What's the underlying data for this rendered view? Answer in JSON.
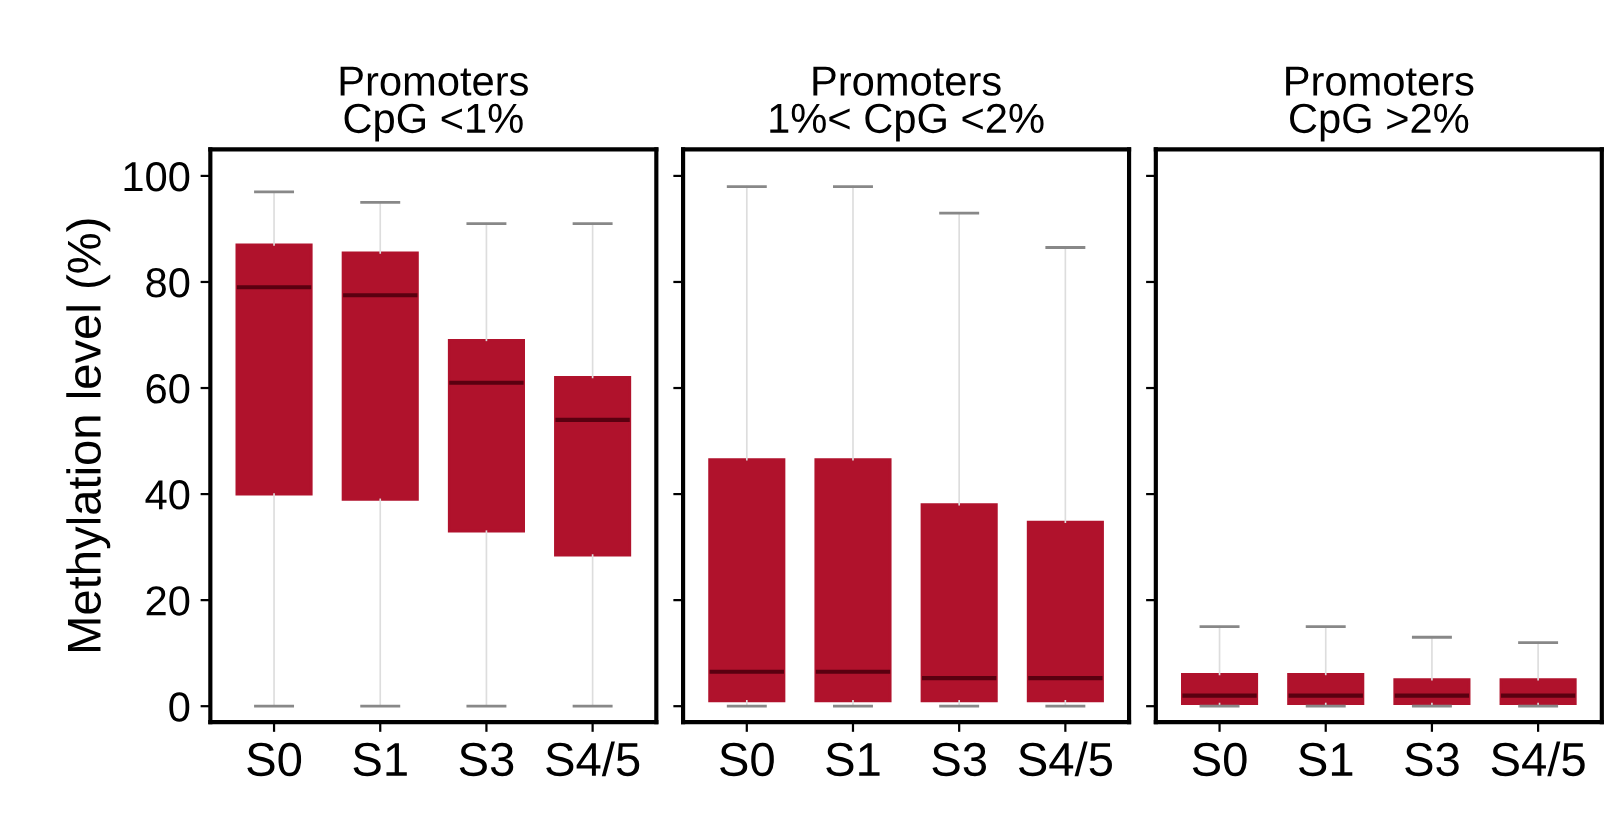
{
  "chart_data": [
    {
      "type": "box",
      "title": "Promoters\nCpG <1%",
      "ylabel": "Methylation level (%)",
      "categories": [
        "S0",
        "S1",
        "S3",
        "S4/5"
      ],
      "ylim": [
        -3,
        105
      ],
      "yticks": [
        0,
        20,
        40,
        60,
        80,
        100
      ],
      "color": "#b0122c",
      "boxes": [
        {
          "low": 0,
          "q1": 40,
          "median": 79,
          "q3": 87,
          "high": 97
        },
        {
          "low": 0,
          "q1": 39,
          "median": 77.5,
          "q3": 85.5,
          "high": 95
        },
        {
          "low": 0,
          "q1": 33,
          "median": 61,
          "q3": 69,
          "high": 91
        },
        {
          "low": 0,
          "q1": 28.5,
          "median": 54,
          "q3": 62,
          "high": 91
        }
      ]
    },
    {
      "type": "box",
      "title": "Promoters\n1%< CpG <2%",
      "categories": [
        "S0",
        "S1",
        "S3",
        "S4/5"
      ],
      "ylim": [
        -3,
        105
      ],
      "yticks": [
        0,
        20,
        40,
        60,
        80,
        100
      ],
      "tick_labels": "x",
      "color": "#b0122c",
      "boxes": [
        {
          "low": 0,
          "q1": 1,
          "median": 6.5,
          "q3": 46.5,
          "high": 98
        },
        {
          "low": 0,
          "q1": 1,
          "median": 6.5,
          "q3": 46.5,
          "high": 98
        },
        {
          "low": 0,
          "q1": 1,
          "median": 5.3,
          "q3": 38,
          "high": 93
        },
        {
          "low": 0,
          "q1": 1,
          "median": 5.3,
          "q3": 34.7,
          "high": 86.5
        }
      ]
    },
    {
      "type": "box",
      "title": "Promoters\nCpG >2%",
      "categories": [
        "S0",
        "S1",
        "S3",
        "S4/5"
      ],
      "ylim": [
        -3,
        105
      ],
      "yticks": [
        0,
        20,
        40,
        60,
        80,
        100
      ],
      "tick_labels": "x",
      "color": "#b0122c",
      "boxes": [
        {
          "low": 0,
          "q1": 0.5,
          "median": 2,
          "q3": 6,
          "high": 15
        },
        {
          "low": 0,
          "q1": 0.5,
          "median": 2,
          "q3": 6,
          "high": 15
        },
        {
          "low": 0,
          "q1": 0.5,
          "median": 2,
          "q3": 5,
          "high": 13
        },
        {
          "low": 0,
          "q1": 0.5,
          "median": 2,
          "q3": 5,
          "high": 12
        }
      ]
    }
  ]
}
